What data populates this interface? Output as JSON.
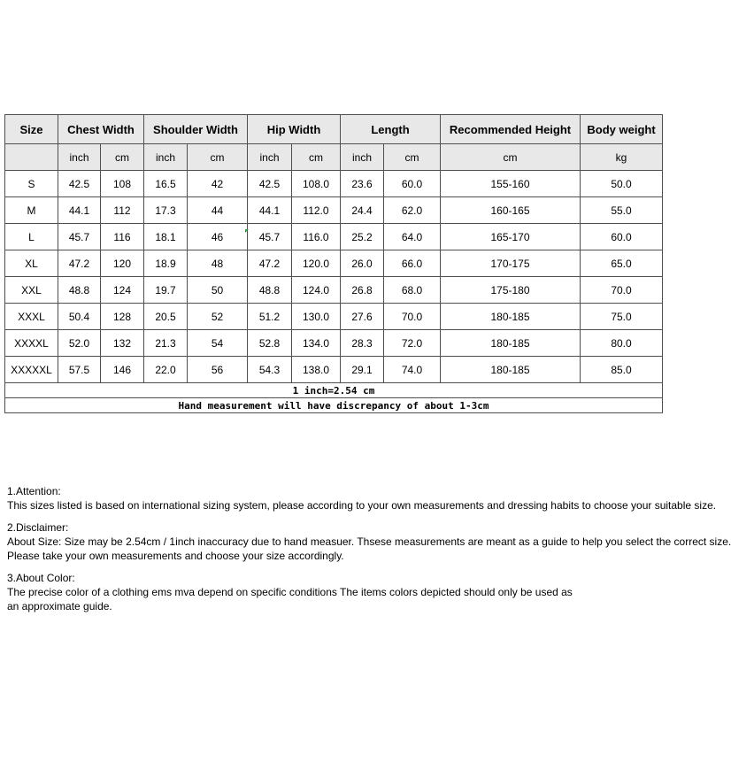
{
  "table": {
    "header": {
      "size": "Size",
      "chest": "Chest Width",
      "shoulder": "Shoulder Width",
      "hip": "Hip Width",
      "length": "Length",
      "height": "Recommended Height",
      "weight": "Body weight"
    },
    "units": {
      "chest_inch": "inch",
      "chest_cm": "cm",
      "shoulder_inch": "inch",
      "shoulder_cm": "cm",
      "hip_inch": "inch",
      "hip_cm": "cm",
      "length_inch": "inch",
      "length_cm": "cm",
      "height_cm": "cm",
      "weight_kg": "kg"
    },
    "columns": [
      "Size",
      "Chest Width inch",
      "Chest Width cm",
      "Shoulder Width inch",
      "Shoulder Width cm",
      "Hip Width inch",
      "Hip Width cm",
      "Length inch",
      "Length cm",
      "Recommended Height cm",
      "Body weight kg"
    ],
    "rows": [
      [
        "S",
        "42.5",
        "108",
        "16.5",
        "42",
        "42.5",
        "108.0",
        "23.6",
        "60.0",
        "155-160",
        "50.0"
      ],
      [
        "M",
        "44.1",
        "112",
        "17.3",
        "44",
        "44.1",
        "112.0",
        "24.4",
        "62.0",
        "160-165",
        "55.0"
      ],
      [
        "L",
        "45.7",
        "116",
        "18.1",
        "46",
        "45.7",
        "116.0",
        "25.2",
        "64.0",
        "165-170",
        "60.0"
      ],
      [
        "XL",
        "47.2",
        "120",
        "18.9",
        "48",
        "47.2",
        "120.0",
        "26.0",
        "66.0",
        "170-175",
        "65.0"
      ],
      [
        "XXL",
        "48.8",
        "124",
        "19.7",
        "50",
        "48.8",
        "124.0",
        "26.8",
        "68.0",
        "175-180",
        "70.0"
      ],
      [
        "XXXL",
        "50.4",
        "128",
        "20.5",
        "52",
        "51.2",
        "130.0",
        "27.6",
        "70.0",
        "180-185",
        "75.0"
      ],
      [
        "XXXXL",
        "52.0",
        "132",
        "21.3",
        "54",
        "52.8",
        "134.0",
        "28.3",
        "72.0",
        "180-185",
        "80.0"
      ],
      [
        "XXXXXL",
        "57.5",
        "146",
        "22.0",
        "56",
        "54.3",
        "138.0",
        "29.1",
        "74.0",
        "180-185",
        "85.0"
      ]
    ],
    "footer_notes": [
      "1 inch=2.54 cm",
      "Hand measurement will have discrepancy of about 1-3cm"
    ]
  },
  "footnotes": [
    {
      "title": "1.Attention:",
      "lines": [
        "This sizes listed is based on international sizing system, please according to your own measurements and dressing habits to choose your suitable size."
      ]
    },
    {
      "title": "2.Disclaimer:",
      "lines": [
        "About Size: Size may be 2.54cm / 1inch inaccuracy due to hand measuer. Thsese measurements are meant as a guide to help you select the correct size.",
        "Please take your own measurements and choose your size accordingly."
      ]
    },
    {
      "title": "3.About Color:",
      "lines": [
        "The precise color of a clothing ems mva depend on specific conditions The items colors depicted should only be used as",
        "an approximate guide."
      ]
    }
  ],
  "colors": {
    "header_bg": "#e8e8e8",
    "border": "#4f4f4f",
    "marker_green": "#2f9e44"
  }
}
